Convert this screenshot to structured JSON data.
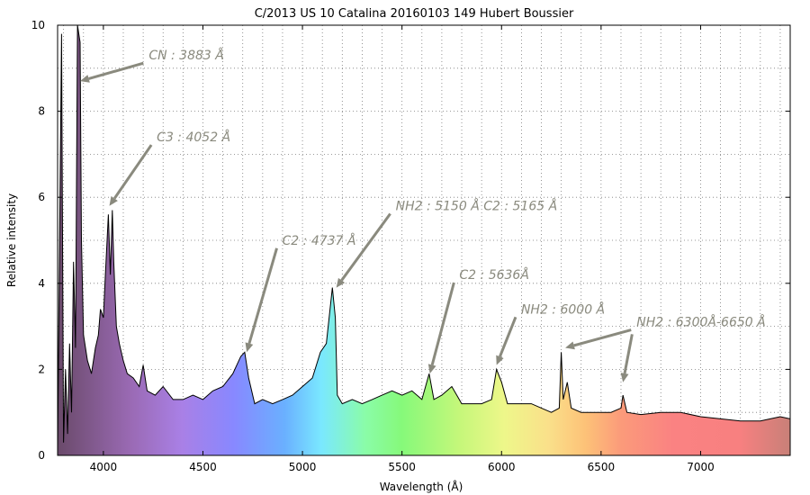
{
  "chart_data": {
    "type": "line",
    "title": "C/2013 US 10  Catalina 20160103 149 Hubert Boussier",
    "xlabel": "Wavelength (Å)",
    "ylabel": "Relative intensity",
    "xlim": [
      3770,
      7450
    ],
    "ylim": [
      0,
      10
    ],
    "x_ticks": [
      4000,
      4500,
      5000,
      5500,
      6000,
      6500,
      7000
    ],
    "y_ticks": [
      0,
      2,
      4,
      6,
      8,
      10
    ],
    "grid": true,
    "background": "rainbow spectrum fill under curve",
    "series": [
      {
        "points": [
          [
            3770,
            0.1
          ],
          [
            3790,
            9.8
          ],
          [
            3800,
            0.3
          ],
          [
            3810,
            2.0
          ],
          [
            3820,
            0.5
          ],
          [
            3830,
            2.6
          ],
          [
            3840,
            1.0
          ],
          [
            3850,
            4.5
          ],
          [
            3860,
            2.5
          ],
          [
            3870,
            10.0
          ],
          [
            3883,
            9.6
          ],
          [
            3890,
            5.0
          ],
          [
            3900,
            2.8
          ],
          [
            3920,
            2.2
          ],
          [
            3940,
            1.9
          ],
          [
            3960,
            2.5
          ],
          [
            3975,
            2.8
          ],
          [
            3985,
            3.4
          ],
          [
            4000,
            3.2
          ],
          [
            4010,
            4.2
          ],
          [
            4025,
            5.6
          ],
          [
            4035,
            4.2
          ],
          [
            4045,
            5.7
          ],
          [
            4052,
            4.5
          ],
          [
            4065,
            3.0
          ],
          [
            4080,
            2.6
          ],
          [
            4100,
            2.2
          ],
          [
            4120,
            1.9
          ],
          [
            4150,
            1.8
          ],
          [
            4180,
            1.6
          ],
          [
            4200,
            2.1
          ],
          [
            4220,
            1.5
          ],
          [
            4260,
            1.4
          ],
          [
            4300,
            1.6
          ],
          [
            4350,
            1.3
          ],
          [
            4400,
            1.3
          ],
          [
            4450,
            1.4
          ],
          [
            4500,
            1.3
          ],
          [
            4550,
            1.5
          ],
          [
            4600,
            1.6
          ],
          [
            4650,
            1.9
          ],
          [
            4690,
            2.3
          ],
          [
            4710,
            2.4
          ],
          [
            4730,
            1.8
          ],
          [
            4760,
            1.2
          ],
          [
            4800,
            1.3
          ],
          [
            4850,
            1.2
          ],
          [
            4900,
            1.3
          ],
          [
            4950,
            1.4
          ],
          [
            5000,
            1.6
          ],
          [
            5050,
            1.8
          ],
          [
            5090,
            2.4
          ],
          [
            5120,
            2.6
          ],
          [
            5150,
            3.9
          ],
          [
            5165,
            3.2
          ],
          [
            5175,
            1.4
          ],
          [
            5200,
            1.2
          ],
          [
            5250,
            1.3
          ],
          [
            5300,
            1.2
          ],
          [
            5350,
            1.3
          ],
          [
            5400,
            1.4
          ],
          [
            5450,
            1.5
          ],
          [
            5500,
            1.4
          ],
          [
            5550,
            1.5
          ],
          [
            5600,
            1.3
          ],
          [
            5636,
            1.9
          ],
          [
            5660,
            1.3
          ],
          [
            5700,
            1.4
          ],
          [
            5750,
            1.6
          ],
          [
            5800,
            1.2
          ],
          [
            5850,
            1.2
          ],
          [
            5900,
            1.2
          ],
          [
            5950,
            1.3
          ],
          [
            5975,
            2.0
          ],
          [
            6000,
            1.7
          ],
          [
            6030,
            1.2
          ],
          [
            6100,
            1.2
          ],
          [
            6150,
            1.2
          ],
          [
            6200,
            1.1
          ],
          [
            6250,
            1.0
          ],
          [
            6290,
            1.1
          ],
          [
            6300,
            2.4
          ],
          [
            6310,
            1.3
          ],
          [
            6330,
            1.7
          ],
          [
            6350,
            1.1
          ],
          [
            6400,
            1.0
          ],
          [
            6450,
            1.0
          ],
          [
            6500,
            1.0
          ],
          [
            6550,
            1.0
          ],
          [
            6600,
            1.1
          ],
          [
            6610,
            1.4
          ],
          [
            6630,
            1.0
          ],
          [
            6700,
            0.95
          ],
          [
            6800,
            1.0
          ],
          [
            6900,
            1.0
          ],
          [
            7000,
            0.9
          ],
          [
            7100,
            0.85
          ],
          [
            7200,
            0.8
          ],
          [
            7300,
            0.8
          ],
          [
            7350,
            0.85
          ],
          [
            7400,
            0.9
          ],
          [
            7450,
            0.85
          ]
        ]
      }
    ],
    "annotations": [
      {
        "text": "CN : 3883 Å",
        "arrow_to": [
          3883,
          8.7
        ],
        "text_at": [
          4210,
          9.2
        ]
      },
      {
        "text": "C3 : 4052 Å",
        "arrow_to": [
          4030,
          5.8
        ],
        "text_at": [
          4250,
          7.3
        ]
      },
      {
        "text": "C2 : 4737 Å",
        "arrow_to": [
          4720,
          2.4
        ],
        "text_at": [
          4880,
          4.9
        ]
      },
      {
        "text": "NH2 : 5150 Å C2 : 5165 Å",
        "arrow_to": [
          5170,
          3.9
        ],
        "text_at": [
          5450,
          5.7
        ]
      },
      {
        "text": "C2 : 5636Å",
        "arrow_to": [
          5640,
          1.9
        ],
        "text_at": [
          5770,
          4.1
        ]
      },
      {
        "text": "NH2 : 6000 Å",
        "arrow_to": [
          5975,
          2.1
        ],
        "text_at": [
          6080,
          3.3
        ]
      },
      {
        "text": "NH2 : 6300Å-6650 Å",
        "arrow_to": [
          6320,
          2.5
        ],
        "text_at": [
          6660,
          3.0
        ]
      },
      {
        "text": "",
        "arrow_to": [
          6610,
          1.7
        ],
        "text_at": [
          6665,
          2.9
        ]
      }
    ]
  }
}
